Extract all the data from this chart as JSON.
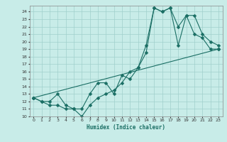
{
  "xlabel": "Humidex (Indice chaleur)",
  "bg_color": "#c8ece8",
  "grid_color": "#a0d0cc",
  "line_color": "#1a6e64",
  "xlim": [
    -0.5,
    23.5
  ],
  "ylim": [
    10,
    24.8
  ],
  "xticks": [
    0,
    1,
    2,
    3,
    4,
    5,
    6,
    7,
    8,
    9,
    10,
    11,
    12,
    13,
    14,
    15,
    16,
    17,
    18,
    19,
    20,
    21,
    22,
    23
  ],
  "yticks": [
    10,
    11,
    12,
    13,
    14,
    15,
    16,
    17,
    18,
    19,
    20,
    21,
    22,
    23,
    24
  ],
  "line1_x": [
    0,
    1,
    2,
    3,
    4,
    5,
    6,
    7,
    8,
    9,
    10,
    11,
    12,
    13,
    14,
    15,
    16,
    17,
    18,
    19,
    20,
    21,
    22,
    23
  ],
  "line1_y": [
    12.5,
    12.0,
    11.5,
    11.5,
    11.0,
    11.0,
    10.0,
    11.5,
    12.5,
    13.0,
    13.5,
    14.5,
    16.0,
    16.5,
    19.5,
    24.5,
    24.0,
    24.5,
    19.5,
    23.5,
    21.0,
    20.5,
    19.0,
    19.0
  ],
  "line2_x": [
    0,
    1,
    2,
    3,
    4,
    5,
    6,
    7,
    8,
    9,
    10,
    11,
    12,
    13,
    14,
    15,
    16,
    17,
    18,
    19,
    20,
    21,
    22,
    23
  ],
  "line2_y": [
    12.5,
    12.0,
    12.0,
    13.0,
    11.5,
    11.0,
    11.0,
    13.0,
    14.5,
    14.5,
    13.0,
    15.5,
    15.0,
    16.5,
    18.5,
    24.5,
    24.0,
    24.5,
    22.0,
    23.5,
    23.5,
    21.0,
    20.0,
    19.5
  ],
  "line3_x": [
    0,
    23
  ],
  "line3_y": [
    12.5,
    19.0
  ]
}
